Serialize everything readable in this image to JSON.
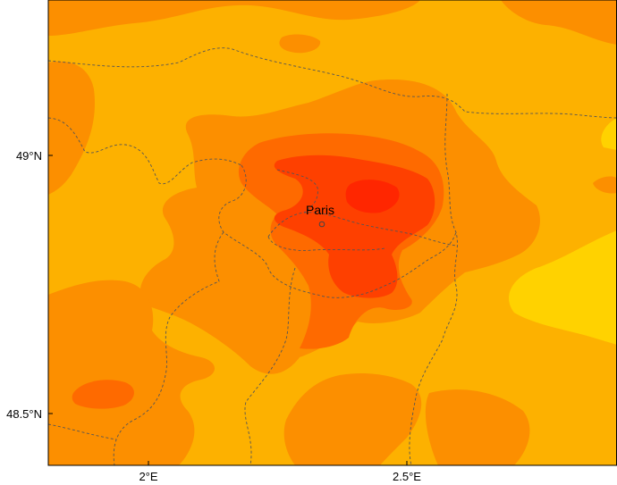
{
  "map": {
    "city": {
      "name": "Paris",
      "lon": 2.35,
      "lat": 48.86
    },
    "lon_ticks": [
      {
        "value": 2.0,
        "label": "2°E"
      },
      {
        "value": 2.5,
        "label": "2.5°E"
      }
    ],
    "lat_ticks": [
      {
        "value": 49.0,
        "label": "49°N"
      },
      {
        "value": 48.5,
        "label": "48.5°N"
      }
    ],
    "colors": {
      "level_1": "#ffd200",
      "level_2": "#fdb100",
      "level_3": "#fc8f00",
      "level_4": "#fe6a00",
      "level_5": "#fe4000",
      "level_6": "#ff2600",
      "border": "#555555",
      "frame": "#000000"
    }
  }
}
